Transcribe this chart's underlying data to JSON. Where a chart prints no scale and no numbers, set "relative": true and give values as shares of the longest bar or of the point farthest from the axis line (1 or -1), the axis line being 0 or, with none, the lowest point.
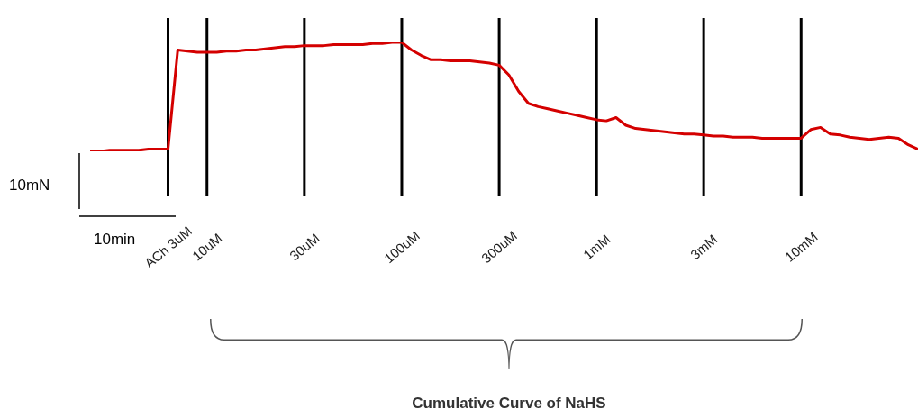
{
  "chart_data": {
    "type": "line",
    "relative": true,
    "tick_labels": "x",
    "color": "#d40000",
    "categories": [
      null,
      null,
      null,
      null,
      null,
      null,
      null,
      null,
      "ACh 3uM",
      null,
      null,
      null,
      "10uM",
      null,
      null,
      null,
      null,
      null,
      null,
      null,
      null,
      null,
      "30uM",
      null,
      null,
      null,
      null,
      null,
      null,
      null,
      null,
      null,
      "100uM",
      null,
      null,
      null,
      null,
      null,
      null,
      null,
      null,
      null,
      "300uM",
      null,
      null,
      null,
      null,
      null,
      null,
      null,
      null,
      null,
      "1mM",
      null,
      null,
      null,
      null,
      null,
      null,
      null,
      null,
      null,
      null,
      "3mM",
      null,
      null,
      null,
      null,
      null,
      null,
      null,
      null,
      null,
      "10mM",
      null,
      null,
      null,
      null,
      null,
      null,
      null,
      null,
      null,
      null,
      null,
      null
    ],
    "values": [
      0,
      0,
      0.01,
      0.01,
      0.01,
      0.01,
      0.02,
      0.02,
      0.02,
      0.93,
      0.92,
      0.91,
      0.91,
      0.91,
      0.92,
      0.92,
      0.93,
      0.93,
      0.94,
      0.95,
      0.96,
      0.96,
      0.97,
      0.97,
      0.97,
      0.98,
      0.98,
      0.98,
      0.98,
      0.99,
      0.99,
      1,
      1,
      0.93,
      0.88,
      0.84,
      0.84,
      0.83,
      0.83,
      0.83,
      0.82,
      0.81,
      0.79,
      0.7,
      0.55,
      0.44,
      0.41,
      0.39,
      0.37,
      0.35,
      0.33,
      0.31,
      0.29,
      0.28,
      0.31,
      0.24,
      0.21,
      0.2,
      0.19,
      0.18,
      0.17,
      0.16,
      0.16,
      0.15,
      0.14,
      0.14,
      0.13,
      0.13,
      0.13,
      0.12,
      0.12,
      0.12,
      0.12,
      0.12,
      0.2,
      0.22,
      0.16,
      0.15,
      0.13,
      0.12,
      0.11,
      0.12,
      0.13,
      0.12,
      0.06,
      0.02
    ],
    "ref_lines": [
      {
        "axis": "x",
        "value": "ACh 3uM",
        "color": "#000000"
      },
      {
        "axis": "x",
        "value": "10uM",
        "color": "#000000"
      },
      {
        "axis": "x",
        "value": "30uM",
        "color": "#000000"
      },
      {
        "axis": "x",
        "value": "100uM",
        "color": "#000000"
      },
      {
        "axis": "x",
        "value": "300uM",
        "color": "#000000"
      },
      {
        "axis": "x",
        "value": "1mM",
        "color": "#000000"
      },
      {
        "axis": "x",
        "value": "3mM",
        "color": "#000000"
      },
      {
        "axis": "x",
        "value": "10mM",
        "color": "#000000"
      }
    ],
    "annotations": [
      "10mN",
      "10min",
      "Cumulative Curve of NaHS"
    ]
  }
}
